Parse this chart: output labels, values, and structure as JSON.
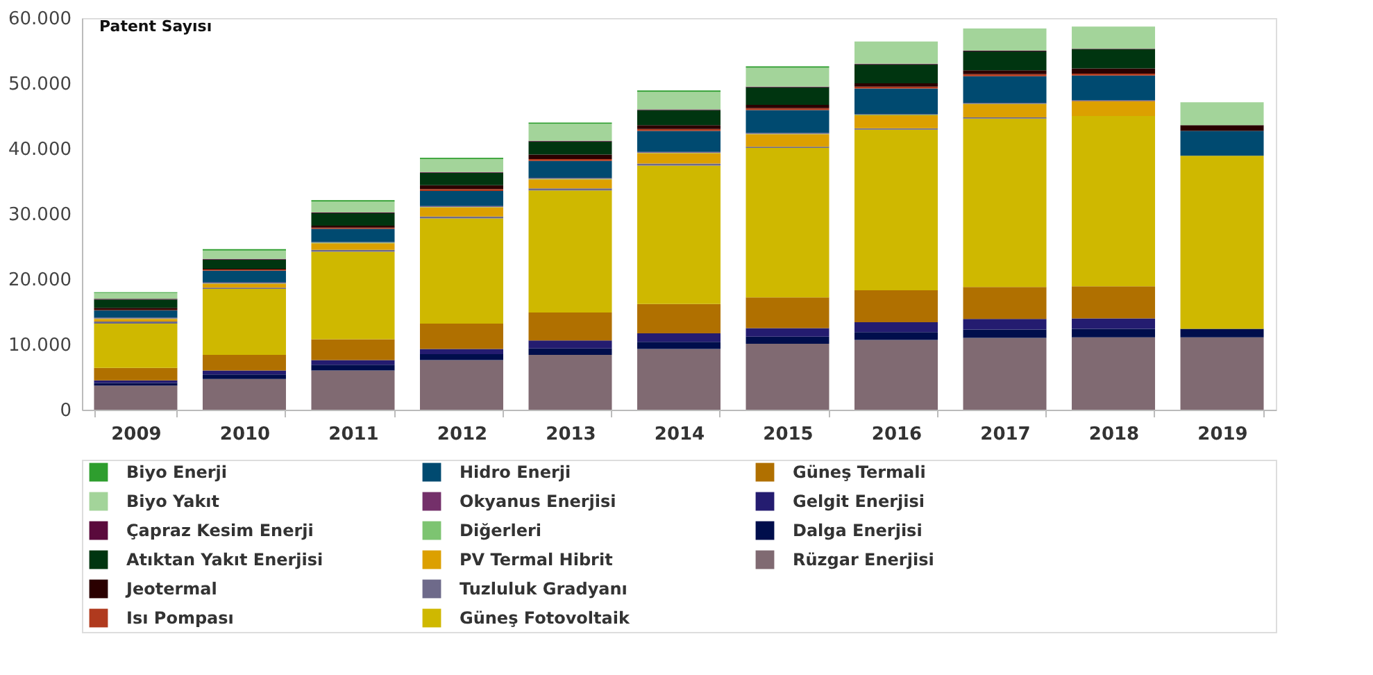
{
  "chart_data": {
    "type": "bar",
    "stacked": true,
    "ylabel": "Patent Sayısı",
    "categories": [
      "2009",
      "2010",
      "2011",
      "2012",
      "2013",
      "2014",
      "2015",
      "2016",
      "2017",
      "2018",
      "2019"
    ],
    "ylim": [
      0,
      60000
    ],
    "yticks": [
      0,
      {
        "value": 10000,
        "label": "10.000"
      },
      {
        "value": 20000,
        "label": "20.000"
      },
      {
        "value": 30000,
        "label": "30.000"
      },
      {
        "value": 40000,
        "label": "40.000"
      },
      {
        "value": 50000,
        "label": "50.000"
      },
      {
        "value": 60000,
        "label": "60.000"
      }
    ],
    "grid": false,
    "legend": "bottom",
    "series": [
      {
        "name": "Rüzgar Enerjisi",
        "color": "#806a72",
        "values": [
          3700,
          4700,
          6000,
          7600,
          8400,
          9300,
          10100,
          10700,
          11000,
          11100,
          11100
        ]
      },
      {
        "name": "Dalga Enerjisi",
        "color": "#000e4c",
        "values": [
          400,
          700,
          900,
          900,
          1000,
          1100,
          1100,
          1200,
          1300,
          1300,
          1300
        ]
      },
      {
        "name": "Gelgit Enerjisi",
        "color": "#241c70",
        "values": [
          400,
          600,
          700,
          800,
          1200,
          1300,
          1300,
          1500,
          1600,
          1600,
          0
        ]
      },
      {
        "name": "Güneş Termali",
        "color": "#b07000",
        "values": [
          1900,
          2400,
          3200,
          3900,
          4300,
          4500,
          4700,
          4900,
          4900,
          4900,
          0
        ]
      },
      {
        "name": "Güneş Fotovoltaik",
        "color": "#cfb800",
        "values": [
          6800,
          10100,
          13400,
          16100,
          18700,
          21200,
          22900,
          24600,
          25800,
          26100,
          26500
        ]
      },
      {
        "name": "Tuzluluk Gradyanı",
        "color": "#6e6a8a",
        "values": [
          300,
          200,
          300,
          300,
          300,
          300,
          200,
          200,
          200,
          0,
          0
        ]
      },
      {
        "name": "PV Termal Hibrit",
        "color": "#dca000",
        "values": [
          400,
          600,
          1000,
          1400,
          1400,
          1600,
          1900,
          2000,
          2000,
          2300,
          0
        ]
      },
      {
        "name": "Diğerleri",
        "color": "#7dc471",
        "values": [
          100,
          100,
          100,
          100,
          100,
          100,
          100,
          100,
          100,
          0,
          0
        ]
      },
      {
        "name": "Okyanus Enerjisi",
        "color": "#74306a",
        "values": [
          100,
          100,
          100,
          100,
          100,
          100,
          100,
          100,
          100,
          100,
          0
        ]
      },
      {
        "name": "Hidro Enerji",
        "color": "#004a70",
        "values": [
          1100,
          1800,
          2000,
          2300,
          2600,
          3200,
          3500,
          3900,
          4100,
          3800,
          3800
        ]
      },
      {
        "name": "Isı Pompası",
        "color": "#b03a1e",
        "values": [
          100,
          200,
          200,
          300,
          300,
          300,
          300,
          300,
          300,
          300,
          0
        ]
      },
      {
        "name": "Jeotermal",
        "color": "#2a0000",
        "values": [
          300,
          100,
          300,
          600,
          700,
          600,
          500,
          500,
          600,
          800,
          900
        ]
      },
      {
        "name": "Atıktan Yakıt Enerjisi",
        "color": "#003510",
        "values": [
          1300,
          1400,
          1900,
          1900,
          2000,
          2300,
          2700,
          2900,
          2900,
          2900,
          0
        ]
      },
      {
        "name": "Çapraz Kesim Enerji",
        "color": "#5a0a3c",
        "values": [
          100,
          100,
          100,
          100,
          100,
          100,
          100,
          100,
          100,
          100,
          0
        ]
      },
      {
        "name": "Biyo Yakıt",
        "color": "#a3d49a",
        "values": [
          900,
          1300,
          1700,
          2000,
          2600,
          2700,
          2900,
          3400,
          3400,
          3400,
          3500
        ]
      },
      {
        "name": "Biyo Enerji",
        "color": "#2e9e2e",
        "values": [
          100,
          200,
          200,
          200,
          200,
          200,
          200,
          0,
          0,
          0,
          0
        ]
      }
    ]
  }
}
